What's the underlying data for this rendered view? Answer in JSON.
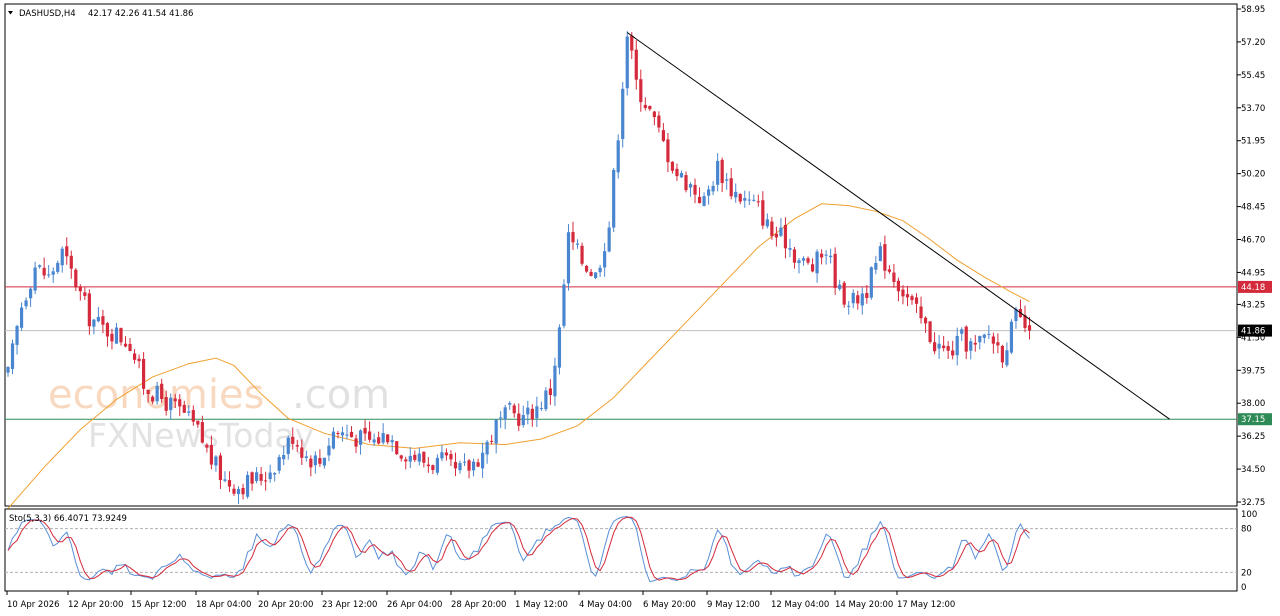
{
  "chart_data": [
    {
      "type": "candlestick",
      "header": {
        "symbol": "DASHUSD,H4",
        "ohlc": "42.17 42.26 41.54 41.86"
      },
      "y_axis": {
        "range": [
          32.75,
          58.95
        ],
        "ticks": [
          "58.95",
          "57.20",
          "55.45",
          "53.70",
          "51.95",
          "50.20",
          "48.45",
          "46.70",
          "44.95",
          "43.25",
          "41.50",
          "39.75",
          "38.00",
          "36.25",
          "34.50",
          "32.75"
        ]
      },
      "x_axis": {
        "ticks": [
          "10 Apr 2026",
          "12 Apr 20:00",
          "15 Apr 12:00",
          "18 Apr 04:00",
          "20 Apr 20:00",
          "23 Apr 12:00",
          "26 Apr 04:00",
          "28 Apr 20:00",
          "1 May 12:00",
          "4 May 04:00",
          "6 May 20:00",
          "9 May 12:00",
          "12 May 04:00",
          "14 May 20:00",
          "17 May 12:00"
        ]
      },
      "price_levels": [
        {
          "value": 44.18,
          "label": "44.18",
          "color": "#d42a3c"
        },
        {
          "value": 41.86,
          "label": "41.86",
          "color": "#000000"
        },
        {
          "value": 37.15,
          "label": "37.15",
          "color": "#2e8b57"
        }
      ],
      "close_path": [
        {
          "bar": 0,
          "price": 39.5
        },
        {
          "bar": 3,
          "price": 43.2
        },
        {
          "bar": 6,
          "price": 45.3
        },
        {
          "bar": 9,
          "price": 44.7
        },
        {
          "bar": 12,
          "price": 46.0
        },
        {
          "bar": 15,
          "price": 44.4
        },
        {
          "bar": 18,
          "price": 42.6
        },
        {
          "bar": 21,
          "price": 42.0
        },
        {
          "bar": 24,
          "price": 41.7
        },
        {
          "bar": 27,
          "price": 41.2
        },
        {
          "bar": 30,
          "price": 39.0
        },
        {
          "bar": 33,
          "price": 38.4
        },
        {
          "bar": 36,
          "price": 37.9
        },
        {
          "bar": 39,
          "price": 37.4
        },
        {
          "bar": 42,
          "price": 36.5
        },
        {
          "bar": 45,
          "price": 35.0
        },
        {
          "bar": 48,
          "price": 33.9
        },
        {
          "bar": 51,
          "price": 33.6
        },
        {
          "bar": 54,
          "price": 33.9
        },
        {
          "bar": 57,
          "price": 34.2
        },
        {
          "bar": 60,
          "price": 35.1
        },
        {
          "bar": 63,
          "price": 36.3
        },
        {
          "bar": 66,
          "price": 35.2
        },
        {
          "bar": 69,
          "price": 34.9
        },
        {
          "bar": 72,
          "price": 36.5
        },
        {
          "bar": 75,
          "price": 36.4
        },
        {
          "bar": 78,
          "price": 36.1
        },
        {
          "bar": 81,
          "price": 36.0
        },
        {
          "bar": 84,
          "price": 36.4
        },
        {
          "bar": 87,
          "price": 35.5
        },
        {
          "bar": 90,
          "price": 35.2
        },
        {
          "bar": 93,
          "price": 34.8
        },
        {
          "bar": 96,
          "price": 34.9
        },
        {
          "bar": 99,
          "price": 34.3
        },
        {
          "bar": 102,
          "price": 34.6
        },
        {
          "bar": 105,
          "price": 35.4
        },
        {
          "bar": 108,
          "price": 36.8
        },
        {
          "bar": 111,
          "price": 37.5
        },
        {
          "bar": 114,
          "price": 37.2
        },
        {
          "bar": 117,
          "price": 37.8
        },
        {
          "bar": 120,
          "price": 38.7
        },
        {
          "bar": 122,
          "price": 41.8
        },
        {
          "bar": 124,
          "price": 46.8
        },
        {
          "bar": 127,
          "price": 45.6
        },
        {
          "bar": 130,
          "price": 44.8
        },
        {
          "bar": 133,
          "price": 47.5
        },
        {
          "bar": 135,
          "price": 52.5
        },
        {
          "bar": 137,
          "price": 57.7
        },
        {
          "bar": 139,
          "price": 55.0
        },
        {
          "bar": 142,
          "price": 53.5
        },
        {
          "bar": 145,
          "price": 51.8
        },
        {
          "bar": 148,
          "price": 50.2
        },
        {
          "bar": 151,
          "price": 49.6
        },
        {
          "bar": 154,
          "price": 48.7
        },
        {
          "bar": 157,
          "price": 50.6
        },
        {
          "bar": 160,
          "price": 49.4
        },
        {
          "bar": 163,
          "price": 48.8
        },
        {
          "bar": 166,
          "price": 48.4
        },
        {
          "bar": 169,
          "price": 47.0
        },
        {
          "bar": 172,
          "price": 46.7
        },
        {
          "bar": 175,
          "price": 45.6
        },
        {
          "bar": 178,
          "price": 45.2
        },
        {
          "bar": 181,
          "price": 46.2
        },
        {
          "bar": 184,
          "price": 43.9
        },
        {
          "bar": 187,
          "price": 43.4
        },
        {
          "bar": 190,
          "price": 44.1
        },
        {
          "bar": 193,
          "price": 45.9
        },
        {
          "bar": 196,
          "price": 44.8
        },
        {
          "bar": 199,
          "price": 43.6
        },
        {
          "bar": 202,
          "price": 42.4
        },
        {
          "bar": 205,
          "price": 41.2
        },
        {
          "bar": 208,
          "price": 40.6
        },
        {
          "bar": 211,
          "price": 41.4
        },
        {
          "bar": 214,
          "price": 40.9
        },
        {
          "bar": 217,
          "price": 41.7
        },
        {
          "bar": 220,
          "price": 40.7
        },
        {
          "bar": 223,
          "price": 42.5
        },
        {
          "bar": 226,
          "price": 41.86
        }
      ],
      "moving_average_path": [
        {
          "bar": 0,
          "price": 32.4
        },
        {
          "bar": 8,
          "price": 34.6
        },
        {
          "bar": 16,
          "price": 36.6
        },
        {
          "bar": 24,
          "price": 38.2
        },
        {
          "bar": 32,
          "price": 39.4
        },
        {
          "bar": 40,
          "price": 40.1
        },
        {
          "bar": 46,
          "price": 40.4
        },
        {
          "bar": 50,
          "price": 40.0
        },
        {
          "bar": 56,
          "price": 38.5
        },
        {
          "bar": 62,
          "price": 37.2
        },
        {
          "bar": 70,
          "price": 36.4
        },
        {
          "bar": 80,
          "price": 35.8
        },
        {
          "bar": 90,
          "price": 35.6
        },
        {
          "bar": 100,
          "price": 35.9
        },
        {
          "bar": 110,
          "price": 35.8
        },
        {
          "bar": 118,
          "price": 36.1
        },
        {
          "bar": 126,
          "price": 36.8
        },
        {
          "bar": 134,
          "price": 38.3
        },
        {
          "bar": 142,
          "price": 40.3
        },
        {
          "bar": 150,
          "price": 42.3
        },
        {
          "bar": 158,
          "price": 44.3
        },
        {
          "bar": 166,
          "price": 46.3
        },
        {
          "bar": 174,
          "price": 47.8
        },
        {
          "bar": 180,
          "price": 48.6
        },
        {
          "bar": 186,
          "price": 48.5
        },
        {
          "bar": 192,
          "price": 48.2
        },
        {
          "bar": 198,
          "price": 47.7
        },
        {
          "bar": 204,
          "price": 46.7
        },
        {
          "bar": 210,
          "price": 45.6
        },
        {
          "bar": 216,
          "price": 44.7
        },
        {
          "bar": 222,
          "price": 43.9
        },
        {
          "bar": 226,
          "price": 43.4
        }
      ],
      "trendline": [
        {
          "bar": 137,
          "price": 57.7
        },
        {
          "bar": 230,
          "price": 43.6
        },
        {
          "bar": 257,
          "price": 37.15
        }
      ],
      "series": [
        {
          "name": "DASHUSD,H4",
          "role": "candles",
          "up_color": "#4a86cf",
          "down_color": "#d42a3c"
        },
        {
          "role": "moving-average",
          "color": "#f0a030"
        },
        {
          "role": "trendline",
          "color": "#000000"
        }
      ]
    },
    {
      "type": "line",
      "header": {
        "label": "Sto(5,3,3) 66.4071 73.9249"
      },
      "y_axis": {
        "range": [
          0,
          100
        ],
        "ticks": [
          "100",
          "80",
          "20",
          "0"
        ],
        "levels": [
          80,
          20
        ]
      },
      "series": [
        {
          "role": "main",
          "color": "#5a8fd8"
        },
        {
          "role": "signal",
          "color": "#d42a3c"
        }
      ],
      "last_values": [
        66.4071,
        73.9249
      ]
    }
  ]
}
